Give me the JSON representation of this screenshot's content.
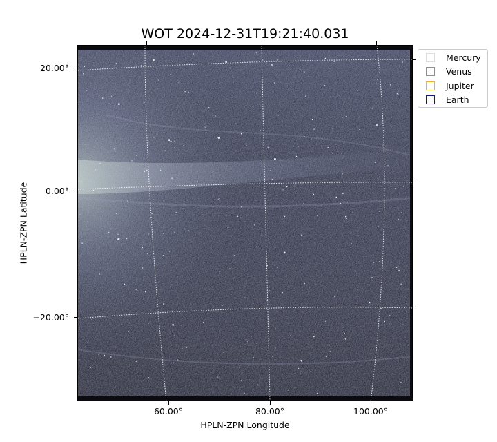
{
  "title": "WOT 2024-12-31T19:21:40.031",
  "axes": {
    "xlabel": "HPLN-ZPN Longitude",
    "ylabel": "HPLN-ZPN Latitude",
    "xticks": [
      "60.00°",
      "80.00°",
      "100.00°"
    ],
    "yticks": [
      "20.00°",
      "0.00°",
      "−20.00°"
    ]
  },
  "legend": {
    "placement": "outside-top-right",
    "items": [
      {
        "label": "Mercury",
        "color": "#dddddd"
      },
      {
        "label": "Venus",
        "color": "#e07b39"
      },
      {
        "label": "Jupiter",
        "color": "#e8b82a"
      },
      {
        "label": "Earth",
        "color": "#1a1a6e"
      }
    ]
  },
  "image": {
    "colormap": [
      "#000000",
      "#3a3d55",
      "#8a90b0",
      "#dfe6ee"
    ],
    "grid": true,
    "grid_style": "dotted-white"
  }
}
